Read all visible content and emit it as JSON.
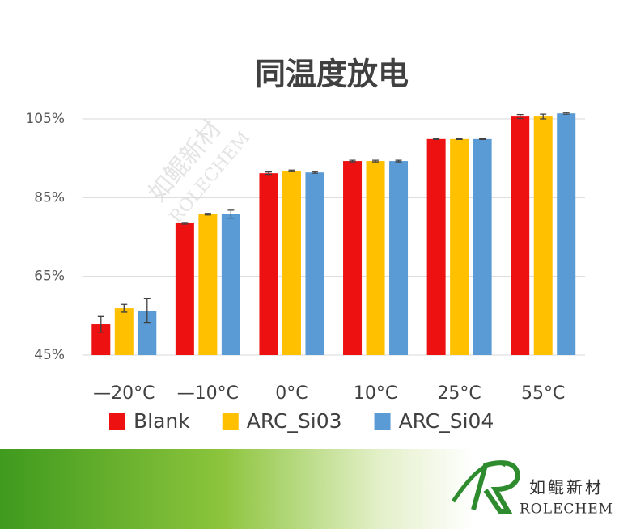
{
  "chart_data": {
    "type": "bar",
    "title": "同温度放电",
    "categories": [
      "—20°C",
      "—10°C",
      "0°C",
      "10°C",
      "25°C",
      "55°C"
    ],
    "series": [
      {
        "name": "Blank",
        "color": "#ee1111",
        "values": [
          52.8,
          78.5,
          91.2,
          94.3,
          99.9,
          105.6
        ],
        "errors": [
          2,
          0.2,
          0.3,
          0.2,
          0.1,
          0.5
        ]
      },
      {
        "name": "ARC_Si03",
        "color": "#ffc000",
        "values": [
          56.9,
          80.8,
          91.8,
          94.3,
          99.9,
          105.6
        ],
        "errors": [
          1,
          0.2,
          0.2,
          0.2,
          0.1,
          0.6
        ]
      },
      {
        "name": "ARC_Si04",
        "color": "#5b9bd5",
        "values": [
          56.3,
          80.8,
          91.4,
          94.3,
          99.9,
          106.4
        ],
        "errors": [
          3,
          1,
          0.2,
          0.2,
          0.1,
          0.2
        ]
      }
    ],
    "ylim": [
      45,
      105
    ],
    "yticks": [
      {
        "value": 45,
        "label": "45%"
      },
      {
        "value": 65,
        "label": "65%"
      },
      {
        "value": 85,
        "label": "85%"
      },
      {
        "value": 105,
        "label": "105%"
      }
    ],
    "grid": true,
    "legend": "bottom"
  },
  "logo": {
    "name": "如鲲新材",
    "brand": "ROLECHEM"
  }
}
